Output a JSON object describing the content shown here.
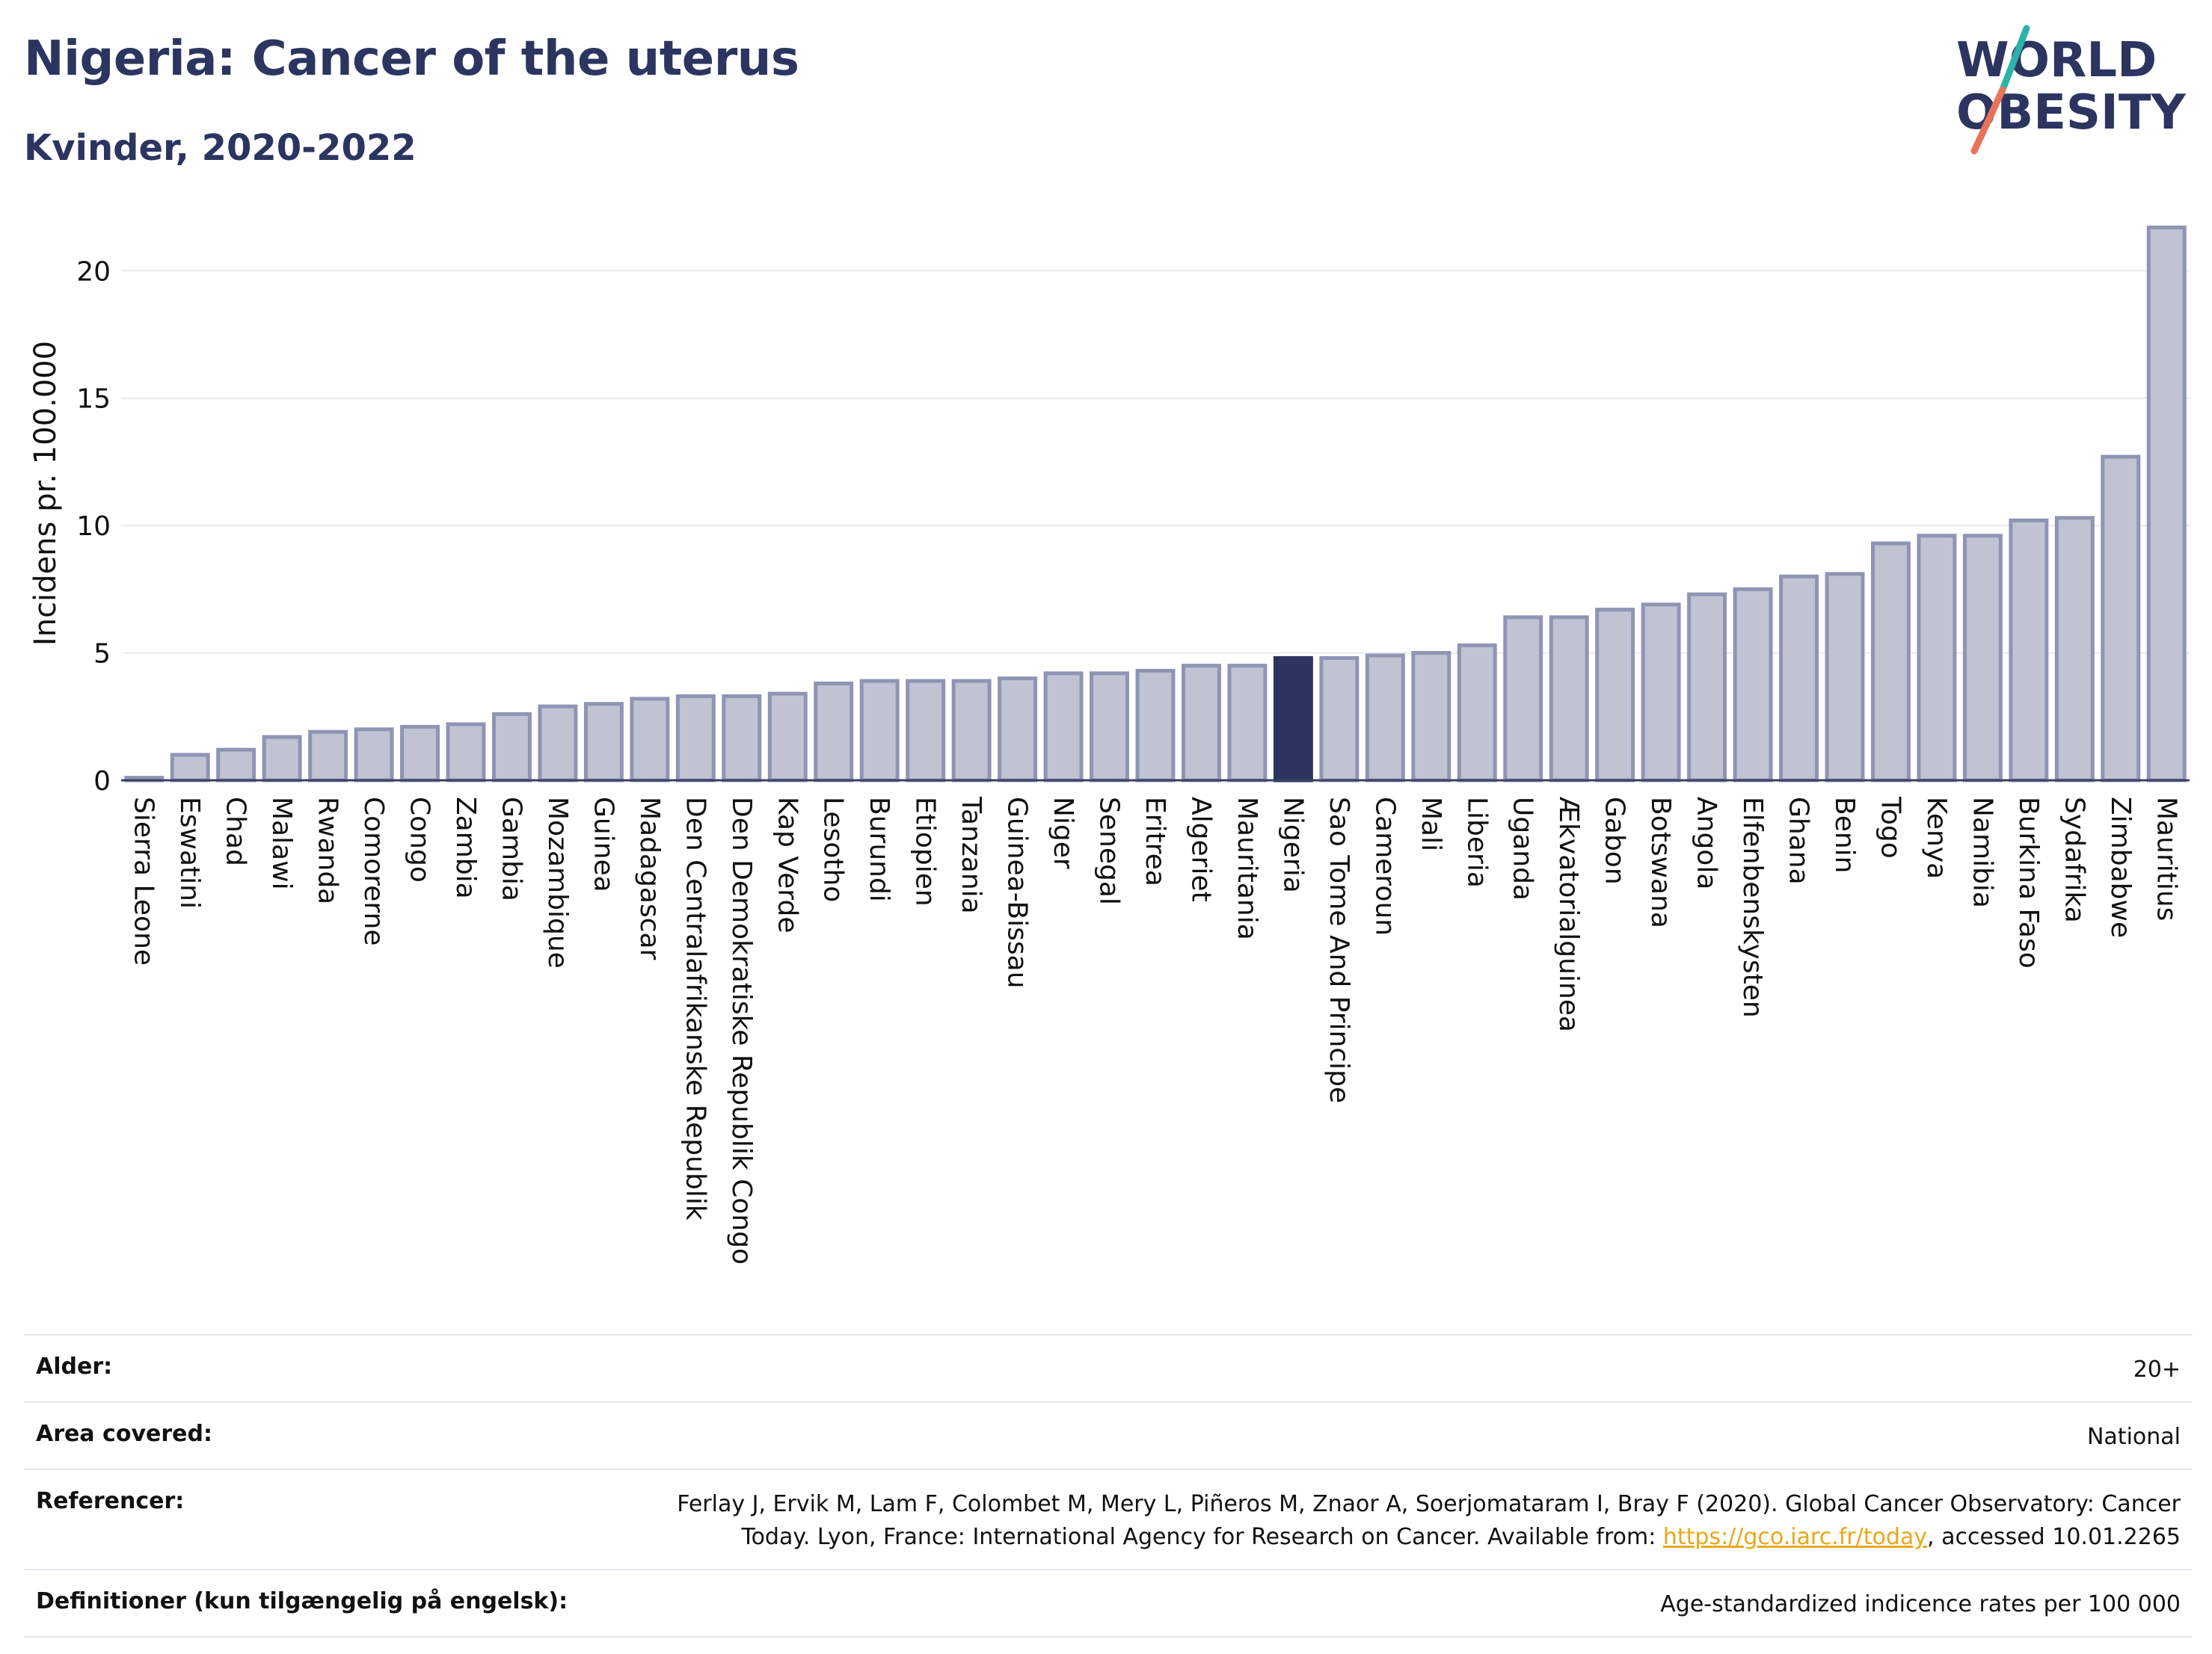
{
  "header": {
    "title": "Nigeria: Cancer of the uterus",
    "subtitle": "Kvinder, 2020-2022"
  },
  "logo": {
    "line1": "WORLD",
    "line2": "OBESITY",
    "accent_teal": "#2bb3a8",
    "accent_coral": "#e8735a",
    "text_color": "#2b3560"
  },
  "chart_data": {
    "type": "bar",
    "ylabel": "Incidens pr. 100.000",
    "xlabel": "",
    "ylim": [
      0,
      23
    ],
    "yticks": [
      0,
      5,
      10,
      15,
      20
    ],
    "grid": true,
    "highlight": "Nigeria",
    "colors": {
      "bar": "#bfc3d2",
      "bar_edge": "#8e95b4",
      "highlight": "#2b3560"
    },
    "categories": [
      "Sierra Leone",
      "Eswatini",
      "Chad",
      "Malawi",
      "Rwanda",
      "Comorerne",
      "Congo",
      "Zambia",
      "Gambia",
      "Mozambique",
      "Guinea",
      "Madagascar",
      "Den Centralafrikanske Republik",
      "Den Demokratiske Republik Congo",
      "Kap Verde",
      "Lesotho",
      "Burundi",
      "Etiopien",
      "Tanzania",
      "Guinea-Bissau",
      "Niger",
      "Senegal",
      "Eritrea",
      "Algeriet",
      "Mauritania",
      "Nigeria",
      "Sao Tome And Principe",
      "Cameroun",
      "Mali",
      "Liberia",
      "Uganda",
      "Ækvatorialguinea",
      "Gabon",
      "Botswana",
      "Angola",
      "Elfenbenskysten",
      "Ghana",
      "Benin",
      "Togo",
      "Kenya",
      "Namibia",
      "Burkina Faso",
      "Sydafrika",
      "Zimbabwe",
      "Mauritius"
    ],
    "values": [
      0.1,
      1.0,
      1.2,
      1.7,
      1.9,
      2.0,
      2.1,
      2.2,
      2.6,
      2.9,
      3.0,
      3.2,
      3.3,
      3.3,
      3.4,
      3.8,
      3.9,
      3.9,
      3.9,
      4.0,
      4.2,
      4.2,
      4.3,
      4.5,
      4.5,
      4.8,
      4.8,
      4.9,
      5.0,
      5.3,
      6.4,
      6.4,
      6.7,
      6.9,
      7.3,
      7.5,
      8.0,
      8.1,
      9.3,
      9.6,
      9.6,
      10.2,
      10.3,
      12.7,
      21.7
    ]
  },
  "info": [
    {
      "label": "Alder:",
      "value": "20+"
    },
    {
      "label": "Area covered:",
      "value": "National"
    },
    {
      "label": "Referencer:",
      "value_pre": "Ferlay J, Ervik M, Lam F, Colombet M, Mery L, Piñeros M, Znaor A, Soerjomataram I, Bray F (2020). Global Cancer Observatory: Cancer Today. Lyon, France: International Agency for Research on Cancer. Available from: ",
      "link": "https://gco.iarc.fr/today",
      "value_post": ", accessed 10.01.2265"
    },
    {
      "label": "Definitioner (kun tilgængelig på engelsk):",
      "value": "Age-standardized indicence rates per 100 000"
    }
  ]
}
